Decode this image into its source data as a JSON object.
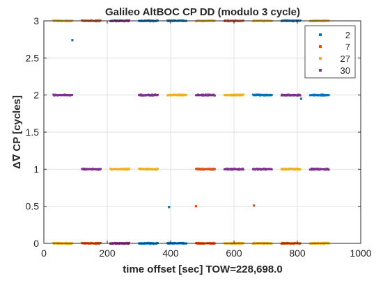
{
  "chart_data": {
    "type": "scatter",
    "title": "Galileo AltBOC CP DD (modulo 3 cycle)",
    "xlabel": "time offset [sec]  TOW=228,698.0",
    "ylabel": "Δ∇ CP [cycles]",
    "xlim": [
      0,
      1000
    ],
    "ylim": [
      0,
      3
    ],
    "xticks": [
      0,
      200,
      400,
      600,
      800,
      1000
    ],
    "yticks": [
      0,
      0.5,
      1,
      1.5,
      2,
      2.5,
      3
    ],
    "xtick_labels": [
      "0",
      "200",
      "400",
      "600",
      "800",
      "1000"
    ],
    "ytick_labels": [
      "0",
      "0.5",
      "1",
      "1.5",
      "2",
      "2.5",
      "3"
    ],
    "grid": true,
    "legend_position": "top-right",
    "series": [
      {
        "name": "2",
        "color": "#0072BD",
        "segments": [
          [
            300,
            360,
            3
          ],
          [
            300,
            360,
            0
          ],
          [
            390,
            450,
            3
          ],
          [
            390,
            450,
            0
          ],
          [
            660,
            720,
            2
          ],
          [
            750,
            810,
            3
          ],
          [
            840,
            900,
            2
          ]
        ],
        "points": [
          [
            90,
            2.74
          ],
          [
            395,
            0.49
          ],
          [
            812,
            1.95
          ]
        ]
      },
      {
        "name": "7",
        "color": "#D95319",
        "segments": [
          [
            120,
            180,
            3
          ],
          [
            120,
            180,
            0
          ],
          [
            480,
            540,
            1
          ],
          [
            480,
            540,
            0
          ],
          [
            570,
            630,
            3
          ],
          [
            750,
            810,
            0
          ]
        ],
        "points": [
          [
            480,
            0.5
          ],
          [
            663,
            0.51
          ]
        ]
      },
      {
        "name": "27",
        "color": "#EDB120",
        "segments": [
          [
            30,
            90,
            3
          ],
          [
            30,
            90,
            0
          ],
          [
            210,
            270,
            1
          ],
          [
            210,
            270,
            0
          ],
          [
            300,
            360,
            1
          ],
          [
            390,
            450,
            2
          ],
          [
            480,
            540,
            3
          ],
          [
            570,
            630,
            2
          ],
          [
            570,
            630,
            0
          ],
          [
            660,
            720,
            3
          ],
          [
            660,
            720,
            0
          ],
          [
            750,
            810,
            1
          ],
          [
            840,
            900,
            3
          ],
          [
            840,
            900,
            0
          ]
        ],
        "points": []
      },
      {
        "name": "30",
        "color": "#7E2F8E",
        "segments": [
          [
            30,
            90,
            2
          ],
          [
            120,
            180,
            1
          ],
          [
            210,
            270,
            3
          ],
          [
            210,
            270,
            0
          ],
          [
            300,
            360,
            2
          ],
          [
            480,
            540,
            2
          ],
          [
            570,
            630,
            1
          ],
          [
            660,
            720,
            1
          ],
          [
            750,
            810,
            2
          ],
          [
            840,
            900,
            1
          ]
        ],
        "points": []
      }
    ]
  }
}
